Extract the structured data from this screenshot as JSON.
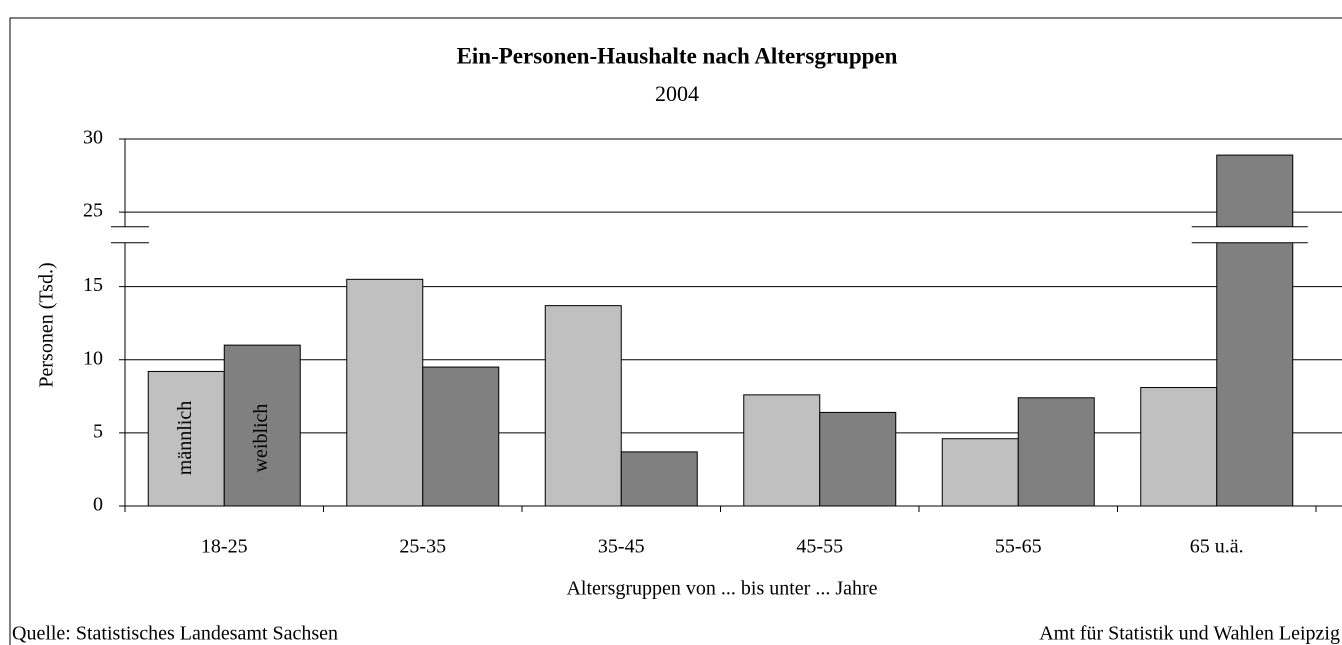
{
  "chart_data": {
    "type": "bar",
    "title": "Ein-Personen-Haushalte nach Altersgruppen",
    "subtitle": "2004",
    "y_label": "Personen (Tsd.)",
    "x_label": "Altersgruppen von ... bis unter ... Jahre",
    "categories": [
      "18-25",
      "25-35",
      "35-45",
      "45-55",
      "55-65",
      "65 u.ä."
    ],
    "series": [
      {
        "name": "männlich",
        "color": "#c0c0c0",
        "values": [
          9.2,
          15.5,
          13.7,
          7.6,
          4.6,
          8.1
        ]
      },
      {
        "name": "weiblich",
        "color": "#808080",
        "values": [
          11.0,
          9.5,
          3.7,
          6.4,
          7.4,
          28.9
        ]
      }
    ],
    "ylim": [
      0,
      30
    ],
    "yticks": [
      0,
      5,
      10,
      15,
      25,
      30
    ],
    "axis_break": [
      18,
      24
    ],
    "grid": true,
    "source": "Quelle: Statistisches Landesamt Sachsen",
    "credit": "Amt für Statistik und Wahlen Leipzig"
  }
}
